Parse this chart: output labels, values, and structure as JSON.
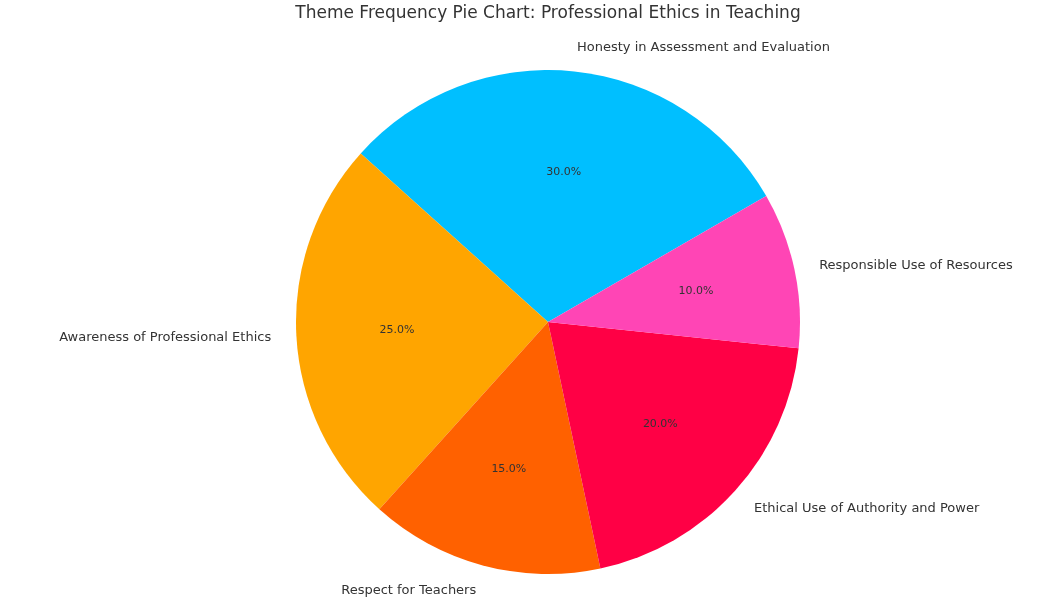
{
  "chart_data": {
    "type": "pie",
    "title": "Theme Frequency Pie Chart: Professional Ethics in Teaching",
    "categories": [
      "Honesty in Assessment and Evaluation",
      "Awareness of Professional Ethics",
      "Respect for Teachers",
      "Ethical Use of Authority and Power",
      "Responsible Use of Resources"
    ],
    "values": [
      30,
      25,
      15,
      20,
      10
    ],
    "colors": [
      "#00bfff",
      "#ffa500",
      "#ff6100",
      "#ff0045",
      "#ff45b5"
    ],
    "value_labels": [
      "30.0%",
      "25.0%",
      "15.0%",
      "20.0%",
      "10.0%"
    ]
  }
}
